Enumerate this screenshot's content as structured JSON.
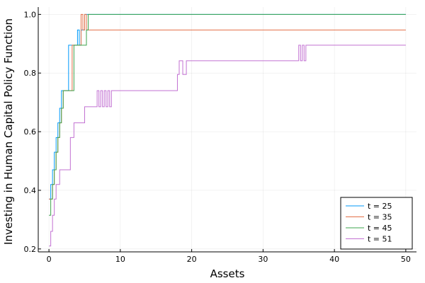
{
  "chart_data": {
    "type": "line",
    "title": "",
    "xlabel": "Assets",
    "ylabel": "Investing in Human Capital Policy Function",
    "xlim": [
      -1.5,
      51.5
    ],
    "ylim": [
      0.19,
      1.025
    ],
    "xticks": [
      0,
      10,
      20,
      30,
      40,
      50
    ],
    "yticks": [
      0.2,
      0.4,
      0.6,
      0.8,
      1.0
    ],
    "xtick_labels": [
      "0",
      "10",
      "20",
      "30",
      "40",
      "50"
    ],
    "ytick_labels": [
      "0.2",
      "0.4",
      "0.6",
      "0.8",
      "1.0"
    ],
    "grid": true,
    "legend_position": "bottom-right",
    "series": [
      {
        "name": "t = 25",
        "color": "#009AFA",
        "x": [
          0,
          0.25,
          0.25,
          0.5,
          0.5,
          0.75,
          0.75,
          1.0,
          1.0,
          1.25,
          1.25,
          1.5,
          1.5,
          1.75,
          1.75,
          2.0,
          2.0,
          2.75,
          2.75,
          4.0,
          4.0,
          4.25,
          4.25,
          4.5,
          4.5,
          5.0,
          5.0,
          50
        ],
        "y": [
          0.37,
          0.37,
          0.42,
          0.42,
          0.47,
          0.47,
          0.53,
          0.53,
          0.58,
          0.58,
          0.63,
          0.63,
          0.68,
          0.68,
          0.74,
          0.74,
          0.74,
          0.74,
          0.895,
          0.895,
          0.947,
          0.947,
          0.895,
          0.895,
          0.947,
          0.947,
          1.0,
          1.0
        ]
      },
      {
        "name": "t = 35",
        "color": "#E36F47",
        "x": [
          0,
          0.5,
          0.5,
          0.75,
          0.75,
          1.0,
          1.0,
          1.25,
          1.25,
          1.5,
          1.5,
          1.75,
          1.75,
          2.0,
          2.0,
          3.25,
          3.25,
          4.5,
          4.5,
          4.75,
          4.75,
          5.0,
          5.0,
          5.25,
          5.25,
          50
        ],
        "y": [
          0.37,
          0.37,
          0.42,
          0.42,
          0.47,
          0.47,
          0.53,
          0.53,
          0.58,
          0.58,
          0.63,
          0.63,
          0.68,
          0.68,
          0.74,
          0.74,
          0.895,
          0.895,
          1.0,
          1.0,
          0.947,
          0.947,
          1.0,
          1.0,
          0.947,
          0.947
        ]
      },
      {
        "name": "t = 45",
        "color": "#3EA44E",
        "x": [
          0,
          0.25,
          0.25,
          0.5,
          0.5,
          0.75,
          0.75,
          1.0,
          1.0,
          1.25,
          1.25,
          1.5,
          1.5,
          1.75,
          1.75,
          2.0,
          2.0,
          3.5,
          3.5,
          5.25,
          5.25,
          5.5,
          5.5,
          50
        ],
        "y": [
          0.315,
          0.315,
          0.37,
          0.37,
          0.42,
          0.42,
          0.47,
          0.47,
          0.53,
          0.53,
          0.58,
          0.58,
          0.63,
          0.63,
          0.68,
          0.68,
          0.74,
          0.74,
          0.895,
          0.895,
          0.947,
          0.947,
          1.0,
          1.0
        ]
      },
      {
        "name": "t = 51",
        "color": "#C271D2",
        "x": [
          0,
          0.25,
          0.25,
          0.5,
          0.5,
          0.75,
          0.75,
          1.0,
          1.0,
          1.25,
          1.25,
          1.5,
          1.5,
          1.75,
          1.75,
          2.0,
          2.0,
          3.0,
          3.0,
          3.5,
          3.5,
          3.75,
          3.75,
          5.0,
          5.0,
          6.75,
          6.75,
          7.0,
          7.0,
          7.25,
          7.25,
          7.5,
          7.5,
          7.75,
          7.75,
          8.0,
          8.0,
          8.25,
          8.25,
          8.5,
          8.5,
          8.75,
          8.75,
          9.0,
          9.0,
          18.0,
          18.0,
          18.25,
          18.25,
          18.75,
          18.75,
          19.25,
          19.25,
          19.5,
          19.5,
          35.0,
          35.0,
          35.25,
          35.25,
          35.5,
          35.5,
          35.75,
          35.75,
          36.0,
          36.0,
          50
        ],
        "y": [
          0.21,
          0.21,
          0.26,
          0.26,
          0.315,
          0.315,
          0.37,
          0.37,
          0.42,
          0.42,
          0.42,
          0.42,
          0.47,
          0.47,
          0.47,
          0.47,
          0.47,
          0.47,
          0.58,
          0.58,
          0.63,
          0.63,
          0.63,
          0.63,
          0.685,
          0.685,
          0.74,
          0.74,
          0.685,
          0.685,
          0.74,
          0.74,
          0.685,
          0.685,
          0.74,
          0.74,
          0.685,
          0.685,
          0.74,
          0.74,
          0.685,
          0.685,
          0.74,
          0.74,
          0.74,
          0.74,
          0.795,
          0.795,
          0.842,
          0.842,
          0.795,
          0.795,
          0.842,
          0.842,
          0.842,
          0.842,
          0.895,
          0.895,
          0.842,
          0.842,
          0.895,
          0.895,
          0.842,
          0.842,
          0.895,
          0.895
        ]
      }
    ]
  }
}
